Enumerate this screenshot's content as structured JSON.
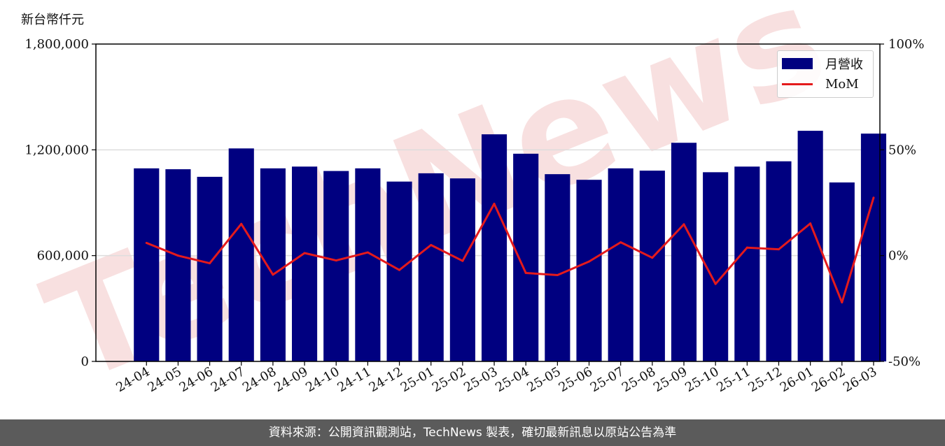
{
  "unit_label": "新台幣仟元",
  "footer_text": "資料來源：公開資訊觀測站，TechNews 製表，確切最新訊息以原站公告為準",
  "watermark_text": "TechNews",
  "colors": {
    "bar": "#000080",
    "line": "#e41a1c",
    "grid": "#dddddd",
    "footer_bg": "#5b5b5b",
    "watermark": "#f3c6c6"
  },
  "chart_data": {
    "type": "bar",
    "categories": [
      "24-04",
      "24-05",
      "24-06",
      "24-07",
      "24-08",
      "24-09",
      "24-10",
      "24-11",
      "24-12",
      "25-01",
      "25-02",
      "25-03",
      "25-04",
      "25-05",
      "25-06",
      "25-07",
      "25-08",
      "25-09",
      "25-10",
      "25-11",
      "25-12",
      "26-01",
      "26-02",
      "26-03"
    ],
    "series": [
      {
        "name": "月營收",
        "kind": "bar",
        "axis": "left",
        "values": [
          1095000,
          1090000,
          1047000,
          1208000,
          1095000,
          1105000,
          1080000,
          1095000,
          1020000,
          1067000,
          1038000,
          1288000,
          1178000,
          1062000,
          1030000,
          1095000,
          1082000,
          1240000,
          1073000,
          1105000,
          1135000,
          1308000,
          1015000,
          1292000
        ]
      },
      {
        "name": "MoM",
        "kind": "line",
        "axis": "right",
        "values": [
          6.0,
          0.0,
          -3.6,
          15.0,
          -9.0,
          1.2,
          -2.3,
          1.5,
          -6.8,
          5.0,
          -2.5,
          24.5,
          -8.2,
          -9.2,
          -2.8,
          6.3,
          -1.0,
          14.8,
          -13.4,
          3.8,
          3.0,
          15.2,
          -22.1,
          27.4
        ]
      }
    ],
    "ylim_left": [
      0,
      1800000
    ],
    "yticks_left": [
      "0",
      "600,000",
      "1,200,000",
      "1,800,000"
    ],
    "yticks_left_values": [
      0,
      600000,
      1200000,
      1800000
    ],
    "ylim_right": [
      -50,
      100
    ],
    "yticks_right": [
      "-50%",
      "0%",
      "50%",
      "100%"
    ],
    "yticks_right_values": [
      -50,
      0,
      50,
      100
    ],
    "grid": "horizontal",
    "legend_position": "top-right",
    "xlabel": "",
    "ylabel": ""
  }
}
